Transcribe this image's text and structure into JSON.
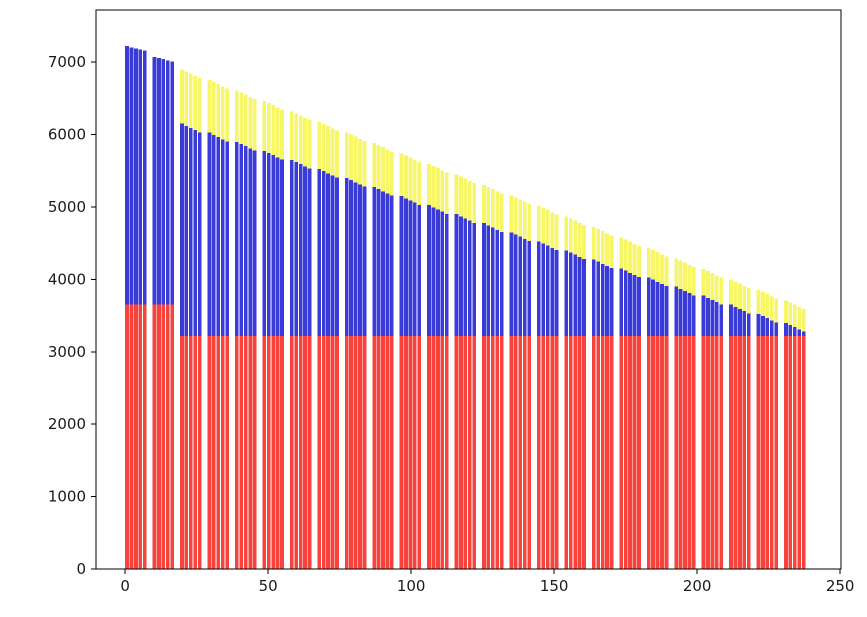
{
  "figure": {
    "background_color": "#ffffff",
    "axes_edge_color": "#000000",
    "tick_label_color": "#1a1a1a"
  },
  "chart_data": {
    "type": "bar",
    "subtype": "stacked-grouped",
    "title": "",
    "xlabel": "",
    "ylabel": "",
    "legend": null,
    "grid": false,
    "xlim": [
      -10.2,
      250.3
    ],
    "ylim": [
      0,
      7720
    ],
    "x_ticks": [
      0,
      50,
      100,
      150,
      200,
      250
    ],
    "y_ticks": [
      0,
      1000,
      2000,
      3000,
      4000,
      5000,
      6000,
      7000
    ],
    "colors": {
      "red": "#f8423c",
      "blue": "#3a3ad8",
      "yellow": "#f6f666"
    },
    "series_names": [
      "red-base",
      "blue-middle",
      "yellow-top"
    ],
    "bar_width": 1.3,
    "bar_step": 1.55,
    "bars_per_group": 5,
    "groups": [
      {
        "x0": 0,
        "red": 3650,
        "blue_tops": [
          7220,
          7205,
          7190,
          7175,
          7160
        ],
        "yellow_tops": null
      },
      {
        "x0": 9.6,
        "red": 3650,
        "blue_tops": [
          7070,
          7055,
          7040,
          7025,
          7010
        ],
        "yellow_tops": null
      },
      {
        "x0": 19.2,
        "red": 3220,
        "blue_tops": [
          6150,
          6120,
          6090,
          6060,
          6030
        ],
        "yellow_tops": [
          6900,
          6870,
          6840,
          6810,
          6780
        ]
      },
      {
        "x0": 28.8,
        "red": 3220,
        "blue_tops": [
          6025,
          5995,
          5965,
          5935,
          5905
        ],
        "yellow_tops": [
          6755,
          6725,
          6695,
          6665,
          6635
        ]
      },
      {
        "x0": 38.4,
        "red": 3220,
        "blue_tops": [
          5900,
          5870,
          5840,
          5810,
          5780
        ],
        "yellow_tops": [
          6610,
          6580,
          6550,
          6520,
          6490
        ]
      },
      {
        "x0": 48,
        "red": 3220,
        "blue_tops": [
          5775,
          5745,
          5715,
          5685,
          5655
        ],
        "yellow_tops": [
          6465,
          6435,
          6405,
          6375,
          6345
        ]
      },
      {
        "x0": 57.6,
        "red": 3220,
        "blue_tops": [
          5650,
          5620,
          5590,
          5560,
          5530
        ],
        "yellow_tops": [
          6320,
          6290,
          6260,
          6230,
          6200
        ]
      },
      {
        "x0": 67.2,
        "red": 3220,
        "blue_tops": [
          5525,
          5495,
          5465,
          5435,
          5405
        ],
        "yellow_tops": [
          6175,
          6145,
          6115,
          6085,
          6055
        ]
      },
      {
        "x0": 76.8,
        "red": 3220,
        "blue_tops": [
          5400,
          5370,
          5340,
          5310,
          5280
        ],
        "yellow_tops": [
          6030,
          6000,
          5970,
          5940,
          5910
        ]
      },
      {
        "x0": 86.4,
        "red": 3220,
        "blue_tops": [
          5275,
          5245,
          5215,
          5185,
          5155
        ],
        "yellow_tops": [
          5885,
          5855,
          5825,
          5795,
          5765
        ]
      },
      {
        "x0": 96,
        "red": 3220,
        "blue_tops": [
          5150,
          5120,
          5090,
          5060,
          5030
        ],
        "yellow_tops": [
          5740,
          5710,
          5680,
          5650,
          5620
        ]
      },
      {
        "x0": 105.6,
        "red": 3220,
        "blue_tops": [
          5025,
          4995,
          4965,
          4935,
          4905
        ],
        "yellow_tops": [
          5595,
          5565,
          5535,
          5505,
          5475
        ]
      },
      {
        "x0": 115.2,
        "red": 3220,
        "blue_tops": [
          4900,
          4870,
          4840,
          4810,
          4780
        ],
        "yellow_tops": [
          5450,
          5420,
          5390,
          5360,
          5330
        ]
      },
      {
        "x0": 124.8,
        "red": 3220,
        "blue_tops": [
          4775,
          4745,
          4715,
          4685,
          4655
        ],
        "yellow_tops": [
          5305,
          5275,
          5245,
          5215,
          5185
        ]
      },
      {
        "x0": 134.4,
        "red": 3220,
        "blue_tops": [
          4650,
          4620,
          4590,
          4560,
          4530
        ],
        "yellow_tops": [
          5160,
          5130,
          5100,
          5070,
          5040
        ]
      },
      {
        "x0": 144,
        "red": 3220,
        "blue_tops": [
          4525,
          4495,
          4465,
          4435,
          4405
        ],
        "yellow_tops": [
          5015,
          4985,
          4955,
          4925,
          4895
        ]
      },
      {
        "x0": 153.6,
        "red": 3220,
        "blue_tops": [
          4400,
          4370,
          4340,
          4310,
          4280
        ],
        "yellow_tops": [
          4870,
          4840,
          4810,
          4780,
          4750
        ]
      },
      {
        "x0": 163.2,
        "red": 3220,
        "blue_tops": [
          4275,
          4245,
          4215,
          4185,
          4155
        ],
        "yellow_tops": [
          4725,
          4695,
          4665,
          4635,
          4605
        ]
      },
      {
        "x0": 172.8,
        "red": 3220,
        "blue_tops": [
          4150,
          4120,
          4090,
          4060,
          4030
        ],
        "yellow_tops": [
          4580,
          4550,
          4520,
          4490,
          4460
        ]
      },
      {
        "x0": 182.4,
        "red": 3220,
        "blue_tops": [
          4025,
          3995,
          3965,
          3935,
          3905
        ],
        "yellow_tops": [
          4435,
          4405,
          4375,
          4345,
          4315
        ]
      },
      {
        "x0": 192,
        "red": 3220,
        "blue_tops": [
          3900,
          3870,
          3840,
          3810,
          3780
        ],
        "yellow_tops": [
          4290,
          4260,
          4230,
          4200,
          4170
        ]
      },
      {
        "x0": 201.6,
        "red": 3220,
        "blue_tops": [
          3775,
          3745,
          3715,
          3685,
          3655
        ],
        "yellow_tops": [
          4145,
          4115,
          4085,
          4055,
          4025
        ]
      },
      {
        "x0": 211.2,
        "red": 3220,
        "blue_tops": [
          3650,
          3620,
          3590,
          3560,
          3530
        ],
        "yellow_tops": [
          4000,
          3970,
          3940,
          3910,
          3880
        ]
      },
      {
        "x0": 220.8,
        "red": 3220,
        "blue_tops": [
          3525,
          3495,
          3465,
          3435,
          3405
        ],
        "yellow_tops": [
          3855,
          3825,
          3795,
          3765,
          3735
        ]
      },
      {
        "x0": 230.4,
        "red": 3220,
        "blue_tops": [
          3400,
          3370,
          3340,
          3310,
          3280
        ],
        "yellow_tops": [
          3710,
          3680,
          3650,
          3620,
          3590
        ]
      }
    ]
  }
}
